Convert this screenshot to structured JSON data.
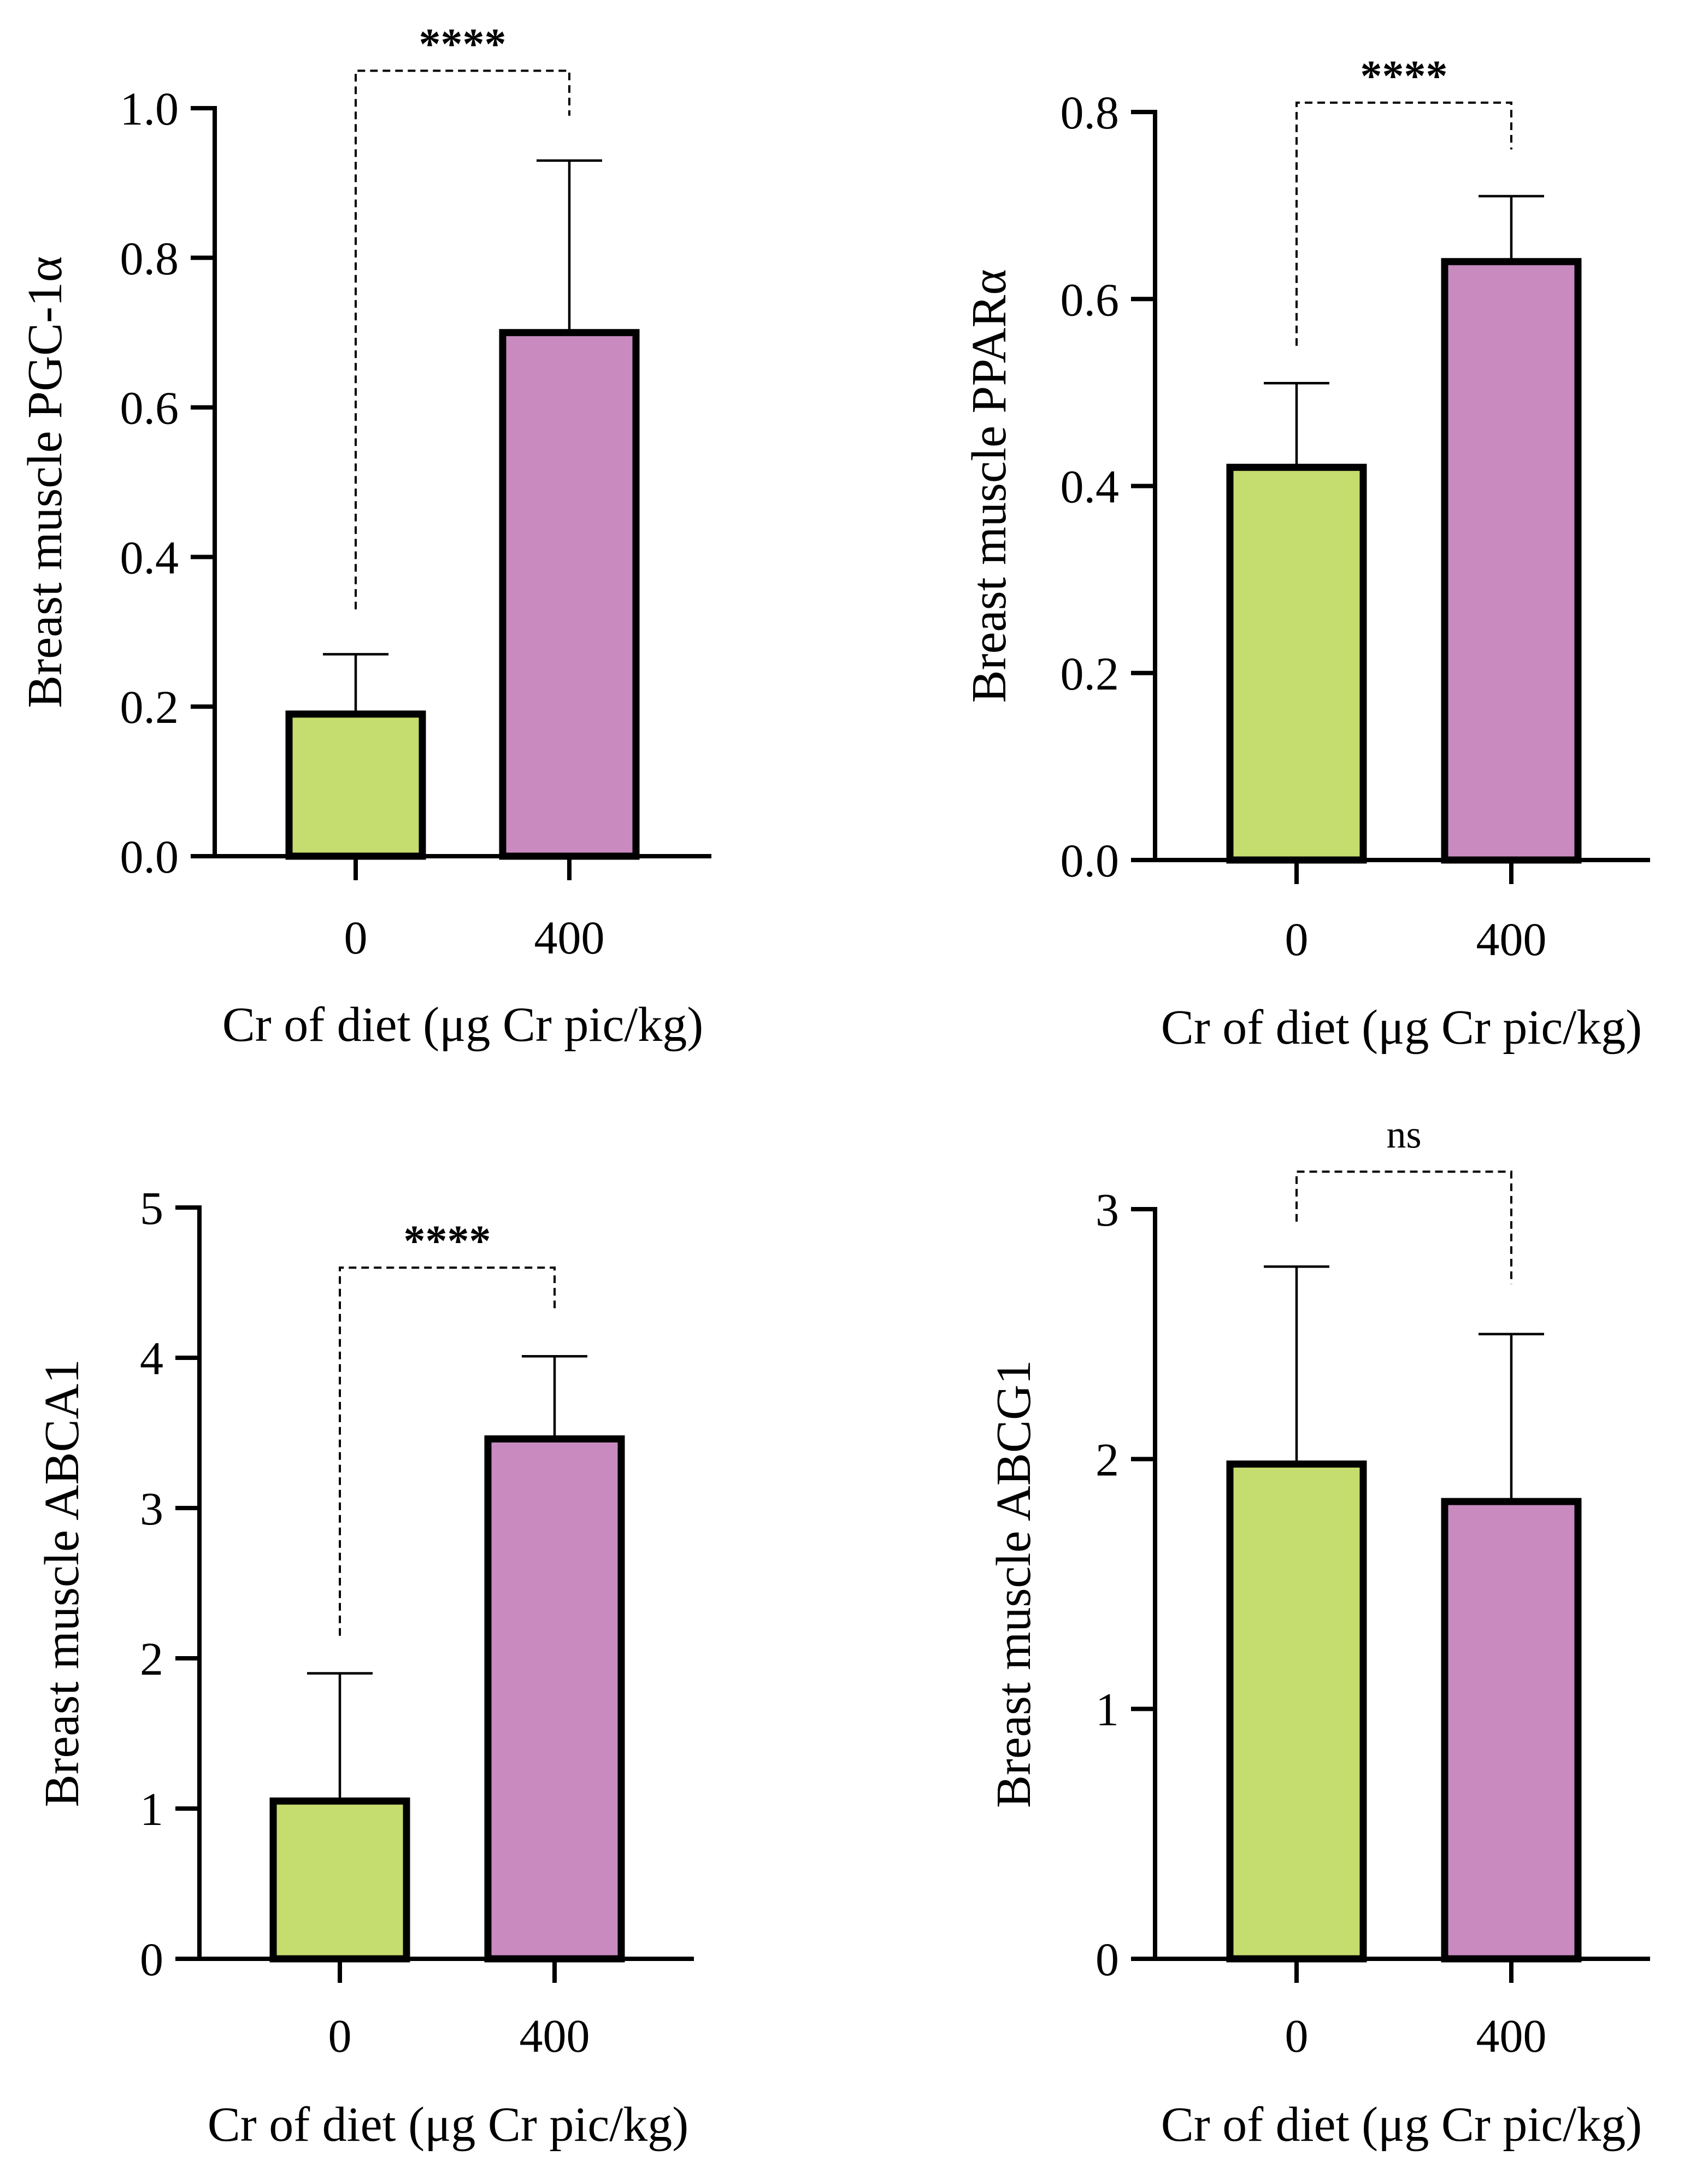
{
  "chart_data": [
    {
      "type": "bar",
      "categories": [
        "0",
        "400"
      ],
      "values": [
        0.19,
        0.7
      ],
      "errors": [
        0.08,
        0.23
      ],
      "colors": [
        "#c5dc6e",
        "#c98abf"
      ],
      "ylim": [
        0,
        1.0
      ],
      "yticks": [
        "0.0",
        "0.2",
        "0.4",
        "0.6",
        "0.8",
        "1.0"
      ],
      "ylabel": "Breast muscle PGC-1α",
      "xlabel": "Cr of diet (μg Cr pic/kg)",
      "significance": "****",
      "sig_bracket_from": [
        0.33,
        0.99
      ],
      "sig_bracket_top": 1.05
    },
    {
      "type": "bar",
      "categories": [
        "0",
        "400"
      ],
      "values": [
        0.42,
        0.64
      ],
      "errors": [
        0.09,
        0.07
      ],
      "colors": [
        "#c5dc6e",
        "#c98abf"
      ],
      "ylim": [
        0,
        0.8
      ],
      "yticks": [
        "0.0",
        "0.2",
        "0.4",
        "0.6",
        "0.8"
      ],
      "ylabel": "Breast muscle PPARα",
      "xlabel": "Cr of diet (μg Cr pic/kg)",
      "significance": "****",
      "sig_bracket_from": [
        0.55,
        0.76
      ],
      "sig_bracket_top": 0.81
    },
    {
      "type": "bar",
      "categories": [
        "0",
        "400"
      ],
      "values": [
        1.05,
        3.46
      ],
      "errors": [
        0.85,
        0.55
      ],
      "colors": [
        "#c5dc6e",
        "#c98abf"
      ],
      "ylim": [
        0,
        5
      ],
      "yticks": [
        "0",
        "1",
        "2",
        "3",
        "4",
        "5"
      ],
      "ylabel": "Breast muscle ABCA1",
      "xlabel": "Cr of diet (μg Cr pic/kg)",
      "significance": "****",
      "sig_bracket_from": [
        2.15,
        4.3
      ],
      "sig_bracket_top": 4.6
    },
    {
      "type": "bar",
      "categories": [
        "0",
        "400"
      ],
      "values": [
        1.98,
        1.83
      ],
      "errors": [
        0.79,
        0.67
      ],
      "colors": [
        "#c5dc6e",
        "#c98abf"
      ],
      "ylim": [
        0,
        3
      ],
      "yticks": [
        "0",
        "1",
        "2",
        "3"
      ],
      "ylabel": "Breast muscle ABCG1",
      "xlabel": "Cr of diet (μg Cr pic/kg)",
      "significance": "ns",
      "sig_bracket_from": [
        2.95,
        2.7
      ],
      "sig_bracket_top": 3.15
    }
  ]
}
